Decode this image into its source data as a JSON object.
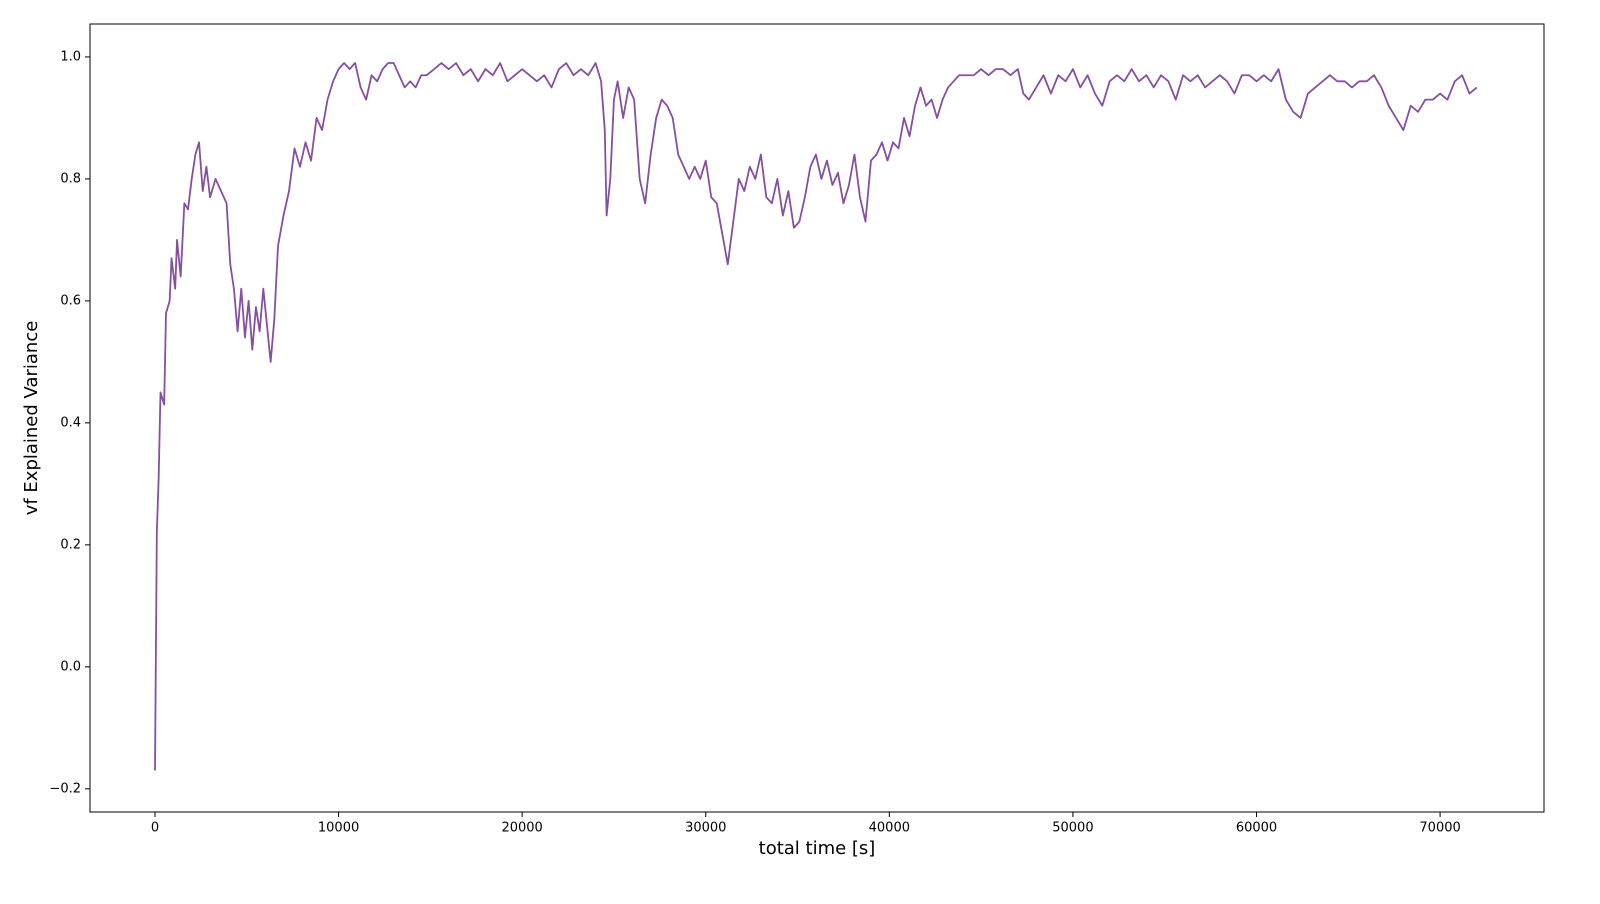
{
  "chart_data": {
    "type": "line",
    "xlabel": "total time [s]",
    "ylabel": "vf Explained Variance",
    "xlim": [
      -3540,
      75660
    ],
    "ylim": [
      -0.238,
      1.054
    ],
    "xticks": [
      0,
      10000,
      20000,
      30000,
      40000,
      50000,
      60000,
      70000
    ],
    "yticks": [
      {
        "value": -0.2,
        "label": "−0.2"
      },
      {
        "value": 0,
        "label": "0.0"
      },
      0.2,
      0.4,
      0.6,
      0.8,
      {
        "value": 1,
        "label": "1.0"
      }
    ],
    "grid": false,
    "x": [
      0,
      100,
      200,
      300,
      500,
      600,
      800,
      900,
      1100,
      1200,
      1400,
      1600,
      1800,
      2000,
      2200,
      2400,
      2600,
      2800,
      3000,
      3300,
      3600,
      3900,
      4100,
      4300,
      4500,
      4700,
      4900,
      5100,
      5300,
      5500,
      5700,
      5900,
      6100,
      6300,
      6500,
      6700,
      7000,
      7300,
      7600,
      7900,
      8200,
      8500,
      8800,
      9100,
      9400,
      9700,
      10000,
      10300,
      10600,
      10900,
      11200,
      11500,
      11800,
      12100,
      12400,
      12700,
      13000,
      13300,
      13600,
      13900,
      14200,
      14500,
      14800,
      15200,
      15600,
      16000,
      16400,
      16800,
      17200,
      17600,
      18000,
      18400,
      18800,
      19200,
      19600,
      20000,
      20400,
      20800,
      21200,
      21600,
      22000,
      22400,
      22800,
      23200,
      23600,
      24000,
      24300,
      24500,
      24600,
      24800,
      25000,
      25200,
      25500,
      25800,
      26100,
      26400,
      26700,
      27000,
      27300,
      27600,
      27900,
      28200,
      28500,
      28800,
      29100,
      29400,
      29700,
      30000,
      30300,
      30600,
      30900,
      31200,
      31500,
      31800,
      32100,
      32400,
      32700,
      33000,
      33300,
      33600,
      33900,
      34200,
      34500,
      34800,
      35100,
      35400,
      35700,
      36000,
      36300,
      36600,
      36900,
      37200,
      37500,
      37800,
      38100,
      38400,
      38700,
      39000,
      39300,
      39600,
      39900,
      40200,
      40500,
      40800,
      41100,
      41400,
      41700,
      42000,
      42300,
      42600,
      42900,
      43200,
      43500,
      43800,
      44200,
      44600,
      45000,
      45400,
      45800,
      46200,
      46600,
      47000,
      47300,
      47600,
      48000,
      48400,
      48800,
      49200,
      49600,
      50000,
      50400,
      50800,
      51200,
      51600,
      52000,
      52400,
      52800,
      53200,
      53600,
      54000,
      54400,
      54800,
      55200,
      55600,
      56000,
      56400,
      56800,
      57200,
      57600,
      58000,
      58400,
      58800,
      59200,
      59600,
      60000,
      60400,
      60800,
      61200,
      61600,
      62000,
      62400,
      62800,
      63200,
      63600,
      64000,
      64400,
      64800,
      65200,
      65600,
      66000,
      66400,
      66800,
      67200,
      67600,
      68000,
      68400,
      68800,
      69200,
      69600,
      70000,
      70400,
      70800,
      71200,
      71600,
      72000
    ],
    "series": [
      {
        "color": "#8450a0",
        "values": [
          -0.17,
          0.22,
          0.31,
          0.45,
          0.43,
          0.58,
          0.6,
          0.67,
          0.62,
          0.7,
          0.64,
          0.76,
          0.75,
          0.8,
          0.84,
          0.86,
          0.78,
          0.82,
          0.77,
          0.8,
          0.78,
          0.76,
          0.66,
          0.62,
          0.55,
          0.62,
          0.54,
          0.6,
          0.52,
          0.59,
          0.55,
          0.62,
          0.56,
          0.5,
          0.57,
          0.69,
          0.74,
          0.78,
          0.85,
          0.82,
          0.86,
          0.83,
          0.9,
          0.88,
          0.93,
          0.96,
          0.98,
          0.99,
          0.98,
          0.99,
          0.95,
          0.93,
          0.97,
          0.96,
          0.98,
          0.99,
          0.99,
          0.97,
          0.95,
          0.96,
          0.95,
          0.97,
          0.97,
          0.98,
          0.99,
          0.98,
          0.99,
          0.97,
          0.98,
          0.96,
          0.98,
          0.97,
          0.99,
          0.96,
          0.97,
          0.98,
          0.97,
          0.96,
          0.97,
          0.95,
          0.98,
          0.99,
          0.97,
          0.98,
          0.97,
          0.99,
          0.96,
          0.88,
          0.74,
          0.8,
          0.93,
          0.96,
          0.9,
          0.95,
          0.93,
          0.8,
          0.76,
          0.84,
          0.9,
          0.93,
          0.92,
          0.9,
          0.84,
          0.82,
          0.8,
          0.82,
          0.8,
          0.83,
          0.77,
          0.76,
          0.71,
          0.66,
          0.73,
          0.8,
          0.78,
          0.82,
          0.8,
          0.84,
          0.77,
          0.76,
          0.8,
          0.74,
          0.78,
          0.72,
          0.73,
          0.77,
          0.82,
          0.84,
          0.8,
          0.83,
          0.79,
          0.81,
          0.76,
          0.79,
          0.84,
          0.77,
          0.73,
          0.83,
          0.84,
          0.86,
          0.83,
          0.86,
          0.85,
          0.9,
          0.87,
          0.92,
          0.95,
          0.92,
          0.93,
          0.9,
          0.93,
          0.95,
          0.96,
          0.97,
          0.97,
          0.97,
          0.98,
          0.97,
          0.98,
          0.98,
          0.97,
          0.98,
          0.94,
          0.93,
          0.95,
          0.97,
          0.94,
          0.97,
          0.96,
          0.98,
          0.95,
          0.97,
          0.94,
          0.92,
          0.96,
          0.97,
          0.96,
          0.98,
          0.96,
          0.97,
          0.95,
          0.97,
          0.96,
          0.93,
          0.97,
          0.96,
          0.97,
          0.95,
          0.96,
          0.97,
          0.96,
          0.94,
          0.97,
          0.97,
          0.96,
          0.97,
          0.96,
          0.98,
          0.93,
          0.91,
          0.9,
          0.94,
          0.95,
          0.96,
          0.97,
          0.96,
          0.96,
          0.95,
          0.96,
          0.96,
          0.97,
          0.95,
          0.92,
          0.9,
          0.88,
          0.92,
          0.91,
          0.93,
          0.93,
          0.94,
          0.93,
          0.96,
          0.97,
          0.94,
          0.95
        ]
      }
    ]
  }
}
